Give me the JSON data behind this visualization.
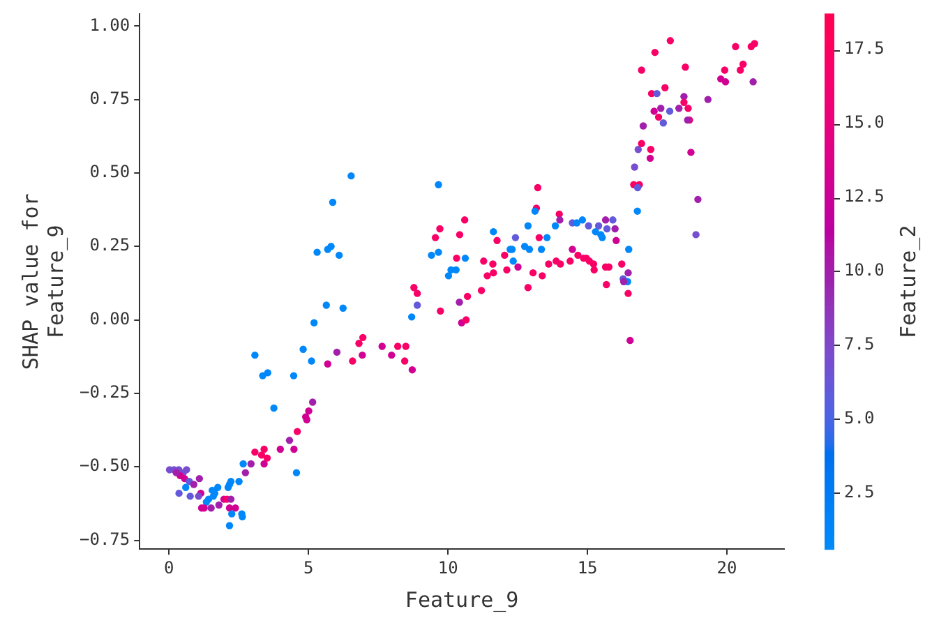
{
  "chart_data": {
    "type": "scatter",
    "xlabel": "Feature_9",
    "ylabel": "SHAP value for\nFeature_9",
    "clabel": "Feature_2",
    "marker": "circle",
    "xlim": [
      -1.05,
      22.05
    ],
    "ylim": [
      -0.78,
      1.04
    ],
    "xticks": [
      0,
      5,
      10,
      15,
      20
    ],
    "yticks": [
      {
        "value": -0.75,
        "label": "−0.75"
      },
      {
        "value": -0.5,
        "label": "−0.50"
      },
      {
        "value": -0.25,
        "label": "−0.25"
      },
      {
        "value": 0,
        "label": "0.00"
      },
      {
        "value": 0.25,
        "label": "0.25"
      },
      {
        "value": 0.5,
        "label": "0.50"
      },
      {
        "value": 0.75,
        "label": "0.75"
      },
      {
        "value": 1,
        "label": "1.00"
      }
    ],
    "clim": [
      0.6,
      18.7
    ],
    "cticks": [
      2.5,
      {
        "value": 5,
        "label": "5.0"
      },
      7.5,
      {
        "value": 10,
        "label": "10.0"
      },
      12.5,
      {
        "value": 15,
        "label": "15.0"
      },
      17.5
    ],
    "x": [
      0.02,
      0.18,
      0.35,
      0.51,
      0.63,
      0.4,
      0.56,
      0.26,
      1.09,
      0.73,
      0.89,
      0.6,
      0.36,
      0.76,
      1.14,
      1.06,
      1.55,
      1.75,
      1.64,
      1.42,
      1.34,
      1.59,
      1.17,
      1.26,
      1.51,
      1.79,
      1.97,
      2.08,
      2.22,
      2.17,
      2.12,
      2.22,
      2.51,
      2.17,
      2.38,
      2.25,
      2.61,
      2.63,
      2.17,
      2.66,
      2.94,
      2.74,
      3.08,
      3.41,
      3.32,
      3.52,
      3.41,
      3.99,
      4.32,
      4.48,
      4.6,
      4.57,
      6.53,
      5.87,
      5.31,
      5.69,
      5.81,
      6.1,
      5.64,
      6.24,
      5.2,
      4.81,
      5.11,
      3.08,
      3.36,
      3.54,
      4.47,
      3.76,
      6.02,
      5.69,
      6.58,
      6.81,
      6.95,
      6.93,
      7.64,
      7.98,
      8.2,
      8.49,
      8.45,
      8.72,
      5.15,
      5.01,
      4.9,
      4.94,
      8.78,
      8.9,
      8.9,
      8.7,
      9.73,
      10.41,
      10.7,
      10.49,
      10.65,
      9.66,
      9.55,
      9.71,
      9.41,
      9.66,
      10.02,
      10.11,
      10.29,
      10.31,
      10.62,
      10.42,
      10.6,
      11.63,
      11.76,
      11.28,
      11.61,
      11.63,
      11.41,
      11.2,
      12.03,
      12.11,
      12.23,
      12.42,
      12.34,
      12.51,
      12.87,
      12.87,
      12.75,
      12.92,
      12.3,
      13.22,
      13.17,
      13.12,
      13.27,
      13.55,
      13.35,
      13.05,
      13.38,
      13.61,
      13.85,
      13.99,
      14.01,
      13.88,
      14.03,
      14.38,
      14.46,
      14.66,
      14.86,
      14.96,
      15.07,
      15.22,
      15.24,
      14.46,
      14.62,
      14.82,
      15.04,
      15.29,
      15.4,
      15.48,
      15.65,
      15.7,
      15.53,
      15.91,
      15.99,
      16.03,
      15.65,
      15.77,
      15.68,
      16.23,
      16.48,
      16.46,
      16.28,
      16.44,
      16.3,
      16.46,
      16.53,
      16.79,
      16.66,
      16.86,
      16.8,
      16.69,
      16.82,
      16.94,
      17.27,
      17.25,
      17.97,
      17.42,
      16.94,
      18.51,
      17.78,
      17.3,
      17.49,
      17.39,
      17.63,
      17.55,
      17.72,
      17.95,
      18.28,
      18.46,
      18.46,
      18.61,
      18.66,
      18.59,
      19.32,
      17.0,
      18.71,
      18.96,
      18.89,
      20.31,
      20.87,
      20.99,
      20.58,
      20.48,
      19.92,
      19.78,
      19.95,
      20.94
    ],
    "values": [
      -0.51,
      -0.51,
      -0.51,
      -0.52,
      -0.51,
      -0.53,
      -0.54,
      -0.52,
      -0.54,
      -0.55,
      -0.56,
      -0.57,
      -0.59,
      -0.6,
      -0.59,
      -0.6,
      -0.58,
      -0.57,
      -0.59,
      -0.61,
      -0.62,
      -0.6,
      -0.64,
      -0.64,
      -0.64,
      -0.63,
      -0.61,
      -0.61,
      -0.61,
      -0.56,
      -0.57,
      -0.55,
      -0.55,
      -0.64,
      -0.64,
      -0.66,
      -0.66,
      -0.67,
      -0.7,
      -0.49,
      -0.49,
      -0.52,
      -0.45,
      -0.44,
      -0.46,
      -0.47,
      -0.49,
      -0.44,
      -0.41,
      -0.44,
      -0.38,
      -0.52,
      0.49,
      0.4,
      0.23,
      0.24,
      0.25,
      0.22,
      0.05,
      0.04,
      -0.01,
      -0.1,
      -0.14,
      -0.12,
      -0.19,
      -0.18,
      -0.19,
      -0.3,
      -0.11,
      -0.15,
      -0.14,
      -0.08,
      -0.06,
      -0.12,
      -0.09,
      -0.12,
      -0.09,
      -0.09,
      -0.14,
      -0.17,
      -0.28,
      -0.31,
      -0.33,
      -0.34,
      0.11,
      0.09,
      0.05,
      0.01,
      0.03,
      0.06,
      0.08,
      -0.01,
      0.0,
      0.46,
      0.28,
      0.31,
      0.22,
      0.23,
      0.15,
      0.17,
      0.17,
      0.21,
      0.21,
      0.29,
      0.34,
      0.3,
      0.27,
      0.2,
      0.19,
      0.16,
      0.15,
      0.1,
      0.22,
      0.17,
      0.24,
      0.28,
      0.2,
      0.18,
      0.32,
      0.11,
      0.25,
      0.24,
      0.24,
      0.45,
      0.38,
      0.37,
      0.28,
      0.28,
      0.24,
      0.16,
      0.15,
      0.19,
      0.32,
      0.36,
      0.34,
      0.2,
      0.19,
      0.2,
      0.24,
      0.22,
      0.21,
      0.21,
      0.2,
      0.19,
      0.17,
      0.33,
      0.33,
      0.34,
      0.32,
      0.3,
      0.32,
      0.29,
      0.34,
      0.31,
      0.28,
      0.34,
      0.31,
      0.27,
      0.18,
      0.18,
      0.12,
      0.19,
      0.24,
      0.16,
      0.14,
      0.13,
      0.13,
      0.09,
      -0.07,
      0.37,
      0.46,
      0.46,
      0.45,
      0.52,
      0.58,
      0.6,
      0.58,
      0.55,
      0.95,
      0.91,
      0.85,
      0.86,
      0.79,
      0.77,
      0.77,
      0.71,
      0.72,
      0.69,
      0.67,
      0.71,
      0.72,
      0.76,
      0.74,
      0.72,
      0.68,
      0.68,
      0.75,
      0.66,
      0.57,
      0.41,
      0.29,
      0.93,
      0.93,
      0.94,
      0.87,
      0.85,
      0.85,
      0.82,
      0.81,
      0.81
    ],
    "cvalues": [
      7,
      7,
      7,
      7,
      7,
      13,
      13,
      10,
      10,
      6,
      10,
      1,
      6,
      6,
      13,
      7,
      1,
      1,
      1,
      1,
      1,
      1,
      13,
      13,
      10,
      10,
      13,
      17,
      10,
      1,
      1,
      1,
      1,
      13,
      13,
      1,
      1,
      1,
      1,
      1,
      10,
      10,
      17,
      17,
      17,
      17,
      13,
      13,
      10,
      13,
      17,
      1,
      1,
      1,
      1,
      1,
      1,
      1,
      1,
      1,
      1,
      1,
      1,
      1,
      1,
      1,
      1,
      1,
      10,
      13,
      17,
      17,
      17,
      13,
      13,
      13,
      17,
      17,
      17,
      13,
      10,
      13,
      13,
      13,
      17,
      17,
      6,
      1,
      17,
      10,
      17,
      13,
      17,
      1,
      17,
      17,
      1,
      1,
      1,
      1,
      1,
      17,
      1,
      17,
      17,
      1,
      17,
      17,
      17,
      17,
      17,
      17,
      17,
      17,
      1,
      6,
      1,
      13,
      1,
      17,
      1,
      1,
      1,
      17,
      17,
      1,
      17,
      1,
      1,
      17,
      17,
      17,
      1,
      17,
      10,
      17,
      17,
      17,
      13,
      17,
      17,
      17,
      17,
      17,
      17,
      6,
      1,
      1,
      6,
      1,
      6,
      1,
      10,
      6,
      1,
      6,
      10,
      13,
      17,
      17,
      17,
      17,
      1,
      10,
      6,
      1,
      10,
      17,
      13,
      1,
      17,
      17,
      6,
      7,
      7,
      17,
      17,
      13,
      17,
      17,
      17,
      17,
      17,
      17,
      6,
      13,
      10,
      17,
      6,
      6,
      10,
      10,
      17,
      17,
      17,
      10,
      10,
      10,
      13,
      10,
      7,
      17,
      17,
      17,
      17,
      17,
      17,
      13,
      13,
      10
    ]
  }
}
